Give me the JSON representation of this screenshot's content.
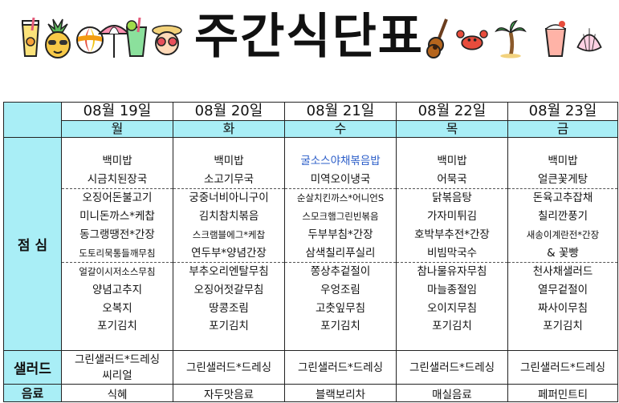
{
  "title": "주간식단표",
  "icons": [
    "juice-icon",
    "pineapple-icon",
    "beach-ball-icon",
    "parasol-icon",
    "cocktail-icon",
    "sunglasses-icon",
    "ukulele-icon",
    "crab-icon",
    "palm-tree-icon",
    "drink-icon",
    "shell-icon"
  ],
  "colors": {
    "header_bg": "#a9eef6",
    "border": "#222222",
    "highlight_text": "#2a5cc8"
  },
  "row_labels": {
    "lunch": "점 심",
    "salad": "샐러드",
    "drink": "음료"
  },
  "days": [
    {
      "date": "08월 19일",
      "weekday": "월",
      "dishes": [
        "백미밥",
        "시금치된장국",
        "오징어돈불고기",
        "미니돈까스*케찹",
        "동그랭땡전*간장",
        "도토리묵통들깨무침",
        "얼갈이시저소스무침",
        "양념고추지",
        "오복지",
        "포기김치"
      ],
      "salad": [
        "그린샐러드*드레싱",
        "씨리얼"
      ],
      "drink": "식혜"
    },
    {
      "date": "08월 20일",
      "weekday": "화",
      "dishes": [
        "백미밥",
        "소고기무국",
        "궁중너비아니구이",
        "김치참치볶음",
        "스크램블에그*케찹",
        "연두부*양념간장",
        "부추오리엔탈무침",
        "오징어젓갈무침",
        "땅콩조림",
        "포기김치"
      ],
      "salad": [
        "그린샐러드*드레싱"
      ],
      "drink": "자두맛음료"
    },
    {
      "date": "08월 21일",
      "weekday": "수",
      "dishes": [
        "굴소스야채볶음밥",
        "미역오이냉국",
        "순살치킨까스*어니언S",
        "스모크햄그린빈볶음",
        "두부부침*간장",
        "삼색칠리푸실리",
        "쫑상추겉절이",
        "우엉조림",
        "고춧잎무침",
        "포기김치"
      ],
      "salad": [
        "그린샐러드*드레싱"
      ],
      "drink": "블랙보리차"
    },
    {
      "date": "08월 22일",
      "weekday": "목",
      "dishes": [
        "백미밥",
        "어묵국",
        "닭볶음탕",
        "가자미튀김",
        "호박부추전*간장",
        "비빔막국수",
        "참나물유자무침",
        "마늘종절임",
        "오이지무침",
        "포기김치"
      ],
      "salad": [
        "그린샐러드*드레싱"
      ],
      "drink": "매실음료"
    },
    {
      "date": "08월 23일",
      "weekday": "금",
      "dishes": [
        "백미밥",
        "얼큰꽃게탕",
        "돈육고추잡채",
        "칠리깐풍기",
        "새송이계란전*간장",
        "& 꽃빵",
        "천사채샐러드",
        "열무겉절이",
        "짜사이무침",
        "포기김치"
      ],
      "salad": [
        "그린샐러드*드레싱"
      ],
      "drink": "페퍼민트티"
    }
  ]
}
